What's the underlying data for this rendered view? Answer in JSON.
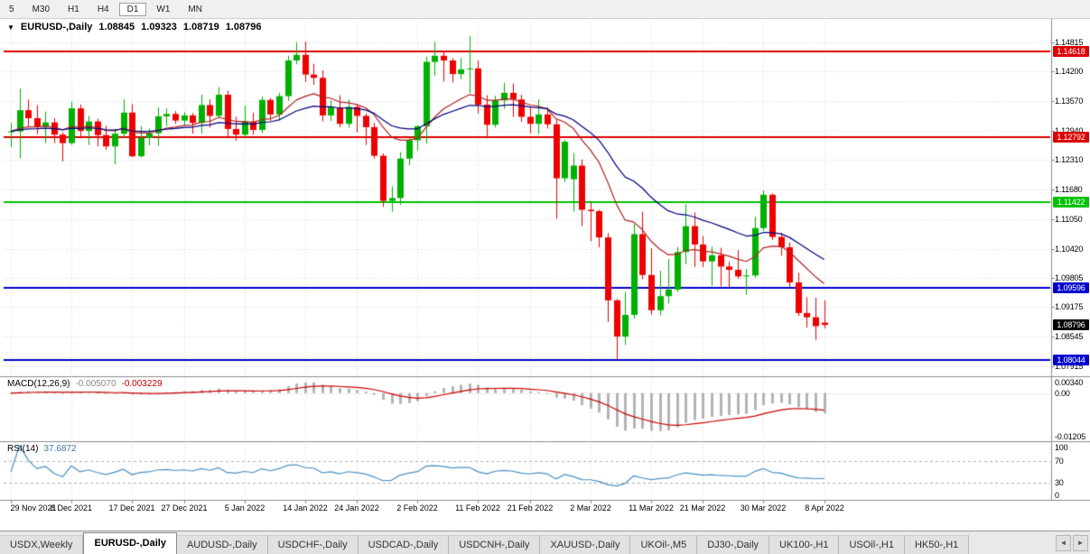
{
  "toolbar": {
    "timeframes": [
      "5",
      "M30",
      "H1",
      "H4",
      "D1",
      "W1",
      "MN"
    ],
    "active_timeframe": "D1"
  },
  "chart_header": {
    "dropdown_icon": "▼",
    "symbol": "EURUSD-,Daily",
    "open": "1.08845",
    "high": "1.09323",
    "low": "1.08719",
    "close": "1.08796"
  },
  "indicators": {
    "macd": {
      "title": "MACD(12,26,9)",
      "main_value": "-0.005070",
      "signal_value": "-0.003229",
      "axis_ticks": [
        {
          "label": "0.00340",
          "value": 0.0034
        },
        {
          "label": "0.00",
          "value": 0
        },
        {
          "label": "-0.01205",
          "value": -0.01205
        }
      ]
    },
    "rsi": {
      "title": "RSI(14)",
      "value": "37.6872",
      "axis_ticks": [
        {
          "label": "100",
          "value": 100
        },
        {
          "label": "70",
          "value": 70
        },
        {
          "label": "30",
          "value": 30
        },
        {
          "label": "0",
          "value": 0
        }
      ],
      "level_lines": [
        70,
        30
      ]
    }
  },
  "price_axis_ticks": [
    "1.14815",
    "1.14200",
    "1.13570",
    "1.12940",
    "1.12310",
    "1.11680",
    "1.11050",
    "1.10420",
    "1.09805",
    "1.09175",
    "1.08545",
    "1.07915"
  ],
  "date_ticks": [
    {
      "label": "29 Nov 2021",
      "candle_index": 0
    },
    {
      "label": "8 Dec 2021",
      "candle_index": 7
    },
    {
      "label": "17 Dec 2021",
      "candle_index": 14
    },
    {
      "label": "27 Dec 2021",
      "candle_index": 20
    },
    {
      "label": "5 Jan 2022",
      "candle_index": 27
    },
    {
      "label": "14 Jan 2022",
      "candle_index": 34
    },
    {
      "label": "24 Jan 2022",
      "candle_index": 40
    },
    {
      "label": "2 Feb 2022",
      "candle_index": 47
    },
    {
      "label": "11 Feb 2022",
      "candle_index": 54
    },
    {
      "label": "21 Feb 2022",
      "candle_index": 60
    },
    {
      "label": "2 Mar 2022",
      "candle_index": 67
    },
    {
      "label": "11 Mar 2022",
      "candle_index": 74
    },
    {
      "label": "21 Mar 2022",
      "candle_index": 80
    },
    {
      "label": "30 Mar 2022",
      "candle_index": 87
    },
    {
      "label": "8 Apr 2022",
      "candle_index": 94
    }
  ],
  "bottom_tabs": {
    "items": [
      "USDX,Weekly",
      "EURUSD-,Daily",
      "AUDUSD-,Daily",
      "USDCHF-,Daily",
      "USDCAD-,Daily",
      "USDCNH-,Daily",
      "XAUUSD-,Daily",
      "UKOil-,M5",
      "DJ30-,Daily",
      "UK100-,H1",
      "USOil-,H1",
      "HK50-,H1"
    ],
    "active": "EURUSD-,Daily",
    "scroll_left": "◄",
    "scroll_right": "►"
  },
  "colors": {
    "bull": "#00b000",
    "bear": "#ee0000",
    "ma_fast": "#b22222",
    "ma_slow": "#000080",
    "macd_hist": "#b4b4b4",
    "macd_signal": "#cc0000",
    "rsi_line": "#4a90c4",
    "level_red": "#dd0000",
    "level_green": "#00c300",
    "level_blue": "#0000cd",
    "current_badge_bg": "#000000",
    "grid": "#d8d8d8",
    "separator": "#8c8c8c"
  },
  "chart_data": {
    "type": "candlestick",
    "title": "EURUSD-,Daily",
    "symbol": "EURUSD",
    "timeframe": "Daily",
    "axes": {
      "price": {
        "min": 1.0778,
        "max": 1.1518
      },
      "macd": {
        "min": -0.01205,
        "max": 0.0034
      },
      "rsi": {
        "min": 0,
        "max": 100
      }
    },
    "overlays": [
      {
        "name": "ma-fast",
        "type": "ema",
        "period": 13
      },
      {
        "name": "ma-slow",
        "type": "ema",
        "period": 26
      }
    ],
    "macd_params": {
      "fast": 12,
      "slow": 26,
      "signal": 9
    },
    "rsi_params": {
      "period": 14
    },
    "horizontal_levels": [
      {
        "value": 1.14618,
        "label": "1.14618",
        "color": "#dd0000"
      },
      {
        "value": 1.12792,
        "label": "1.12792",
        "color": "#dd0000"
      },
      {
        "value": 1.11422,
        "label": "1.11422",
        "color": "#00c300"
      },
      {
        "value": 1.09596,
        "label": "1.09596",
        "color": "#0000cd"
      },
      {
        "value": 1.08044,
        "label": "1.08044",
        "color": "#0000cd"
      }
    ],
    "current_price": {
      "value": 1.08796,
      "label": "1.08796",
      "color": "#000000"
    },
    "candles": [
      [
        "29 Nov 2021",
        1.129,
        1.131,
        1.1258,
        1.1292
      ],
      [
        "30 Nov 2021",
        1.1292,
        1.1383,
        1.1235,
        1.1337
      ],
      [
        "1 Dec 2021",
        1.1337,
        1.136,
        1.1302,
        1.132
      ],
      [
        "2 Dec 2021",
        1.132,
        1.1348,
        1.1286,
        1.1302
      ],
      [
        "3 Dec 2021",
        1.1302,
        1.1334,
        1.1267,
        1.1311
      ],
      [
        "6 Dec 2021",
        1.1311,
        1.132,
        1.1267,
        1.1285
      ],
      [
        "7 Dec 2021",
        1.1285,
        1.129,
        1.1228,
        1.1267
      ],
      [
        "8 Dec 2021",
        1.1267,
        1.1355,
        1.1263,
        1.1341
      ],
      [
        "9 Dec 2021",
        1.1341,
        1.1349,
        1.1277,
        1.1293
      ],
      [
        "10 Dec 2021",
        1.1293,
        1.1325,
        1.1263,
        1.1313
      ],
      [
        "13 Dec 2021",
        1.1313,
        1.1319,
        1.126,
        1.1284
      ],
      [
        "14 Dec 2021",
        1.1284,
        1.1304,
        1.1253,
        1.126
      ],
      [
        "15 Dec 2021",
        1.126,
        1.1297,
        1.1222,
        1.1287
      ],
      [
        "16 Dec 2021",
        1.1287,
        1.136,
        1.128,
        1.1332
      ],
      [
        "17 Dec 2021",
        1.1332,
        1.135,
        1.1237,
        1.1239
      ],
      [
        "20 Dec 2021",
        1.1239,
        1.1303,
        1.1236,
        1.1278
      ],
      [
        "21 Dec 2021",
        1.1278,
        1.1298,
        1.1262,
        1.1288
      ],
      [
        "22 Dec 2021",
        1.1288,
        1.1343,
        1.1261,
        1.1324
      ],
      [
        "23 Dec 2021",
        1.1324,
        1.1341,
        1.1303,
        1.1329
      ],
      [
        "24 Dec 2021",
        1.1329,
        1.1335,
        1.1308,
        1.1315
      ],
      [
        "27 Dec 2021",
        1.1315,
        1.1333,
        1.1304,
        1.1326
      ],
      [
        "28 Dec 2021",
        1.1326,
        1.1331,
        1.1287,
        1.131
      ],
      [
        "29 Dec 2021",
        1.131,
        1.137,
        1.1287,
        1.1348
      ],
      [
        "30 Dec 2021",
        1.1348,
        1.136,
        1.13,
        1.1325
      ],
      [
        "31 Dec 2021",
        1.1325,
        1.1386,
        1.132,
        1.137
      ],
      [
        "3 Jan 2022",
        1.137,
        1.1379,
        1.1279,
        1.1297
      ],
      [
        "4 Jan 2022",
        1.1297,
        1.1323,
        1.1272,
        1.1285
      ],
      [
        "5 Jan 2022",
        1.1285,
        1.1347,
        1.128,
        1.1313
      ],
      [
        "6 Jan 2022",
        1.1313,
        1.1332,
        1.1285,
        1.1295
      ],
      [
        "7 Jan 2022",
        1.1295,
        1.1366,
        1.1288,
        1.1359
      ],
      [
        "10 Jan 2022",
        1.1359,
        1.1363,
        1.1314,
        1.1328
      ],
      [
        "11 Jan 2022",
        1.1328,
        1.1374,
        1.1315,
        1.1367
      ],
      [
        "12 Jan 2022",
        1.1367,
        1.1453,
        1.1357,
        1.1443
      ],
      [
        "13 Jan 2022",
        1.1443,
        1.1482,
        1.1435,
        1.1455
      ],
      [
        "14 Jan 2022",
        1.1455,
        1.1483,
        1.1397,
        1.1413
      ],
      [
        "17 Jan 2022",
        1.1413,
        1.1436,
        1.1391,
        1.1406
      ],
      [
        "18 Jan 2022",
        1.1406,
        1.1422,
        1.1313,
        1.1326
      ],
      [
        "19 Jan 2022",
        1.1326,
        1.1358,
        1.1314,
        1.1343
      ],
      [
        "20 Jan 2022",
        1.1343,
        1.1369,
        1.1301,
        1.1308
      ],
      [
        "21 Jan 2022",
        1.1308,
        1.136,
        1.13,
        1.1344
      ],
      [
        "24 Jan 2022",
        1.1344,
        1.1349,
        1.129,
        1.1325
      ],
      [
        "25 Jan 2022",
        1.1325,
        1.133,
        1.1263,
        1.1301
      ],
      [
        "26 Jan 2022",
        1.1301,
        1.131,
        1.1234,
        1.124
      ],
      [
        "27 Jan 2022",
        1.124,
        1.1245,
        1.1131,
        1.1144
      ],
      [
        "28 Jan 2022",
        1.1144,
        1.1175,
        1.1121,
        1.115
      ],
      [
        "31 Jan 2022",
        1.115,
        1.1248,
        1.1135,
        1.1234
      ],
      [
        "1 Feb 2022",
        1.1234,
        1.1279,
        1.122,
        1.1273
      ],
      [
        "2 Feb 2022",
        1.1273,
        1.1305,
        1.1251,
        1.1303
      ],
      [
        "3 Feb 2022",
        1.1303,
        1.1451,
        1.1266,
        1.144
      ],
      [
        "4 Feb 2022",
        1.144,
        1.1483,
        1.1411,
        1.1453
      ],
      [
        "7 Feb 2022",
        1.1453,
        1.1462,
        1.1398,
        1.1443
      ],
      [
        "8 Feb 2022",
        1.1443,
        1.1448,
        1.1396,
        1.1414
      ],
      [
        "9 Feb 2022",
        1.1414,
        1.1448,
        1.1403,
        1.1424
      ],
      [
        "10 Feb 2022",
        1.1424,
        1.1495,
        1.1374,
        1.1426
      ],
      [
        "11 Feb 2022",
        1.1426,
        1.1443,
        1.133,
        1.1349
      ],
      [
        "14 Feb 2022",
        1.1349,
        1.1369,
        1.1278,
        1.1306
      ],
      [
        "15 Feb 2022",
        1.1306,
        1.1368,
        1.13,
        1.1358
      ],
      [
        "16 Feb 2022",
        1.1358,
        1.1395,
        1.134,
        1.1374
      ],
      [
        "17 Feb 2022",
        1.1374,
        1.1394,
        1.1323,
        1.136
      ],
      [
        "18 Feb 2022",
        1.136,
        1.137,
        1.1312,
        1.1323
      ],
      [
        "21 Feb 2022",
        1.1323,
        1.1345,
        1.1288,
        1.1308
      ],
      [
        "22 Feb 2022",
        1.1308,
        1.136,
        1.1286,
        1.1328
      ],
      [
        "23 Feb 2022",
        1.1328,
        1.1343,
        1.1298,
        1.1307
      ],
      [
        "24 Feb 2022",
        1.1307,
        1.1316,
        1.1106,
        1.1192
      ],
      [
        "25 Feb 2022",
        1.1192,
        1.1274,
        1.1184,
        1.127
      ],
      [
        "28 Feb 2022",
        1.119,
        1.1246,
        1.1121,
        1.1219
      ],
      [
        "1 Mar 2022",
        1.1219,
        1.1232,
        1.109,
        1.1125
      ],
      [
        "2 Mar 2022",
        1.1125,
        1.114,
        1.1058,
        1.1122
      ],
      [
        "3 Mar 2022",
        1.1122,
        1.1125,
        1.1045,
        1.1066
      ],
      [
        "4 Mar 2022",
        1.1066,
        1.1075,
        1.0886,
        1.0932
      ],
      [
        "7 Mar 2022",
        1.0932,
        1.0935,
        1.0806,
        1.0855
      ],
      [
        "8 Mar 2022",
        1.0855,
        1.095,
        1.0837,
        1.0901
      ],
      [
        "9 Mar 2022",
        1.0901,
        1.1095,
        1.0893,
        1.1073
      ],
      [
        "10 Mar 2022",
        1.1073,
        1.1121,
        1.0977,
        1.0986
      ],
      [
        "11 Mar 2022",
        1.0986,
        1.1043,
        1.0901,
        1.0911
      ],
      [
        "14 Mar 2022",
        1.0911,
        1.0995,
        1.09,
        1.0941
      ],
      [
        "15 Mar 2022",
        1.0941,
        1.102,
        1.0925,
        1.0955
      ],
      [
        "16 Mar 2022",
        1.0955,
        1.1046,
        1.095,
        1.1035
      ],
      [
        "17 Mar 2022",
        1.1035,
        1.1137,
        1.1009,
        1.109
      ],
      [
        "18 Mar 2022",
        1.109,
        1.1119,
        1.1003,
        1.1051
      ],
      [
        "21 Mar 2022",
        1.1051,
        1.1069,
        1.1003,
        1.1015
      ],
      [
        "22 Mar 2022",
        1.1015,
        1.1046,
        1.0963,
        1.1028
      ],
      [
        "23 Mar 2022",
        1.1028,
        1.1044,
        1.0962,
        1.1004
      ],
      [
        "24 Mar 2022",
        1.1004,
        1.1014,
        1.096,
        1.0997
      ],
      [
        "25 Mar 2022",
        1.0997,
        1.1039,
        1.0978,
        1.0983
      ],
      [
        "28 Mar 2022",
        1.0983,
        1.0999,
        1.0944,
        1.0985
      ],
      [
        "29 Mar 2022",
        1.0985,
        1.111,
        1.098,
        1.1086
      ],
      [
        "30 Mar 2022",
        1.1086,
        1.1166,
        1.108,
        1.1157
      ],
      [
        "31 Mar 2022",
        1.1157,
        1.116,
        1.1061,
        1.1067
      ],
      [
        "1 Apr 2022",
        1.1067,
        1.1076,
        1.1027,
        1.1045
      ],
      [
        "4 Apr 2022",
        1.1045,
        1.1055,
        1.0961,
        1.097
      ],
      [
        "5 Apr 2022",
        1.097,
        1.0991,
        1.0899,
        1.0905
      ],
      [
        "6 Apr 2022",
        1.0905,
        1.0939,
        1.0874,
        1.0896
      ],
      [
        "7 Apr 2022",
        1.0896,
        1.0938,
        1.0848,
        1.0877
      ],
      [
        "8 Apr 2022",
        1.08845,
        1.09323,
        1.08719,
        1.08796
      ]
    ]
  }
}
